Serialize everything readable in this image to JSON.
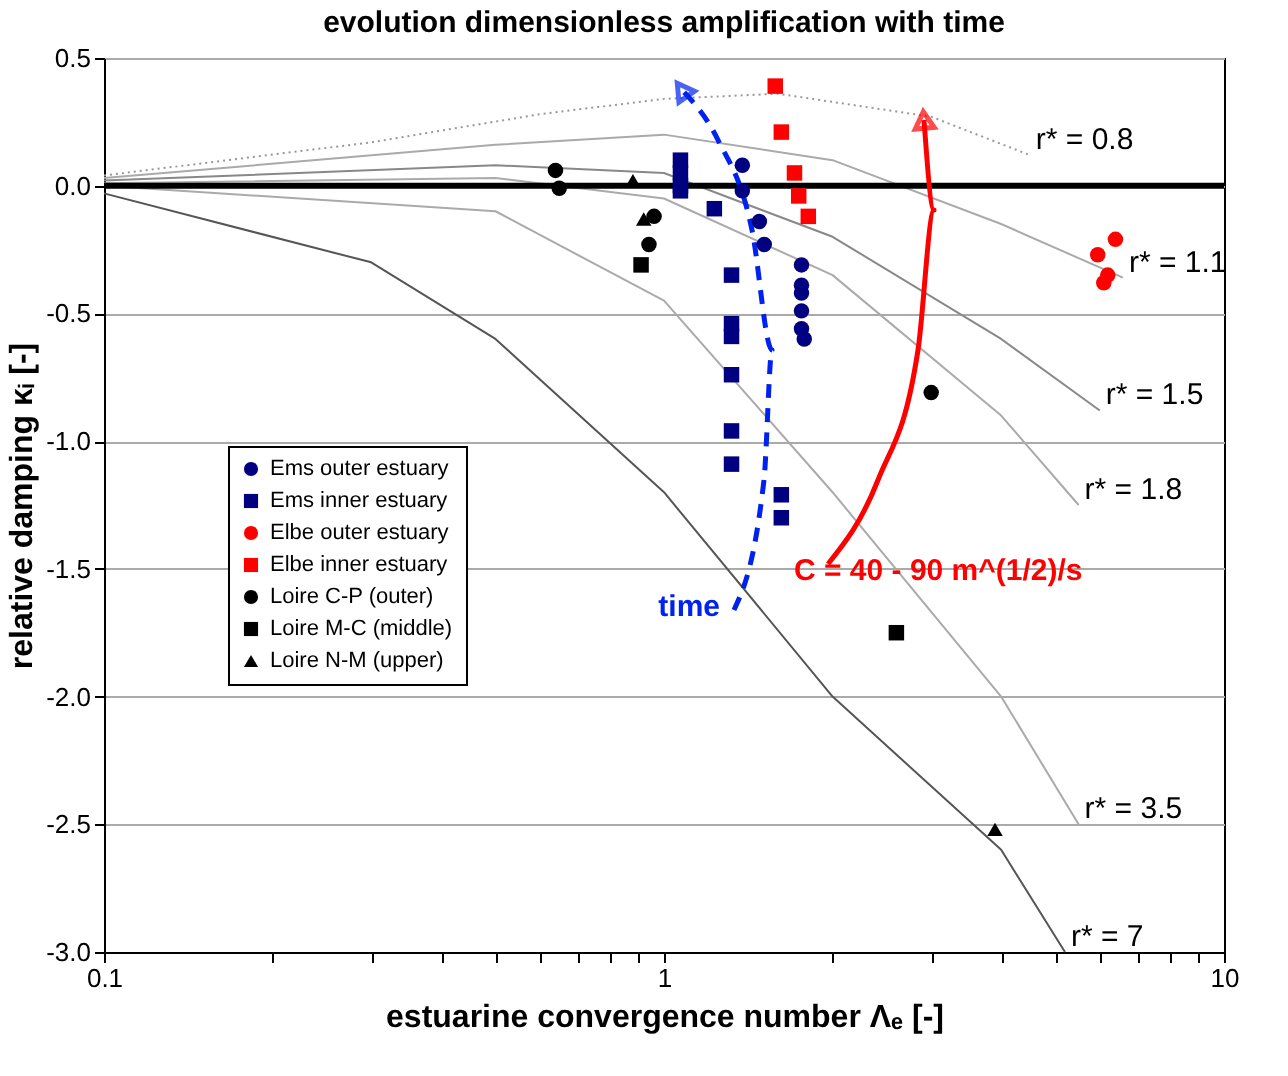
{
  "chart_data": {
    "type": "scatter",
    "title": "evolution dimensionless amplification with time",
    "xlabel": "estuarine convergence number Λₑ [-]",
    "ylabel": "relative damping κᵢ [-]",
    "log": "x",
    "grid": "y",
    "legend": "left",
    "xlim": [
      0.1,
      10
    ],
    "xticks": [
      0.1,
      {
        "value": 0.2,
        "label": null
      },
      {
        "value": 0.3,
        "label": null
      },
      {
        "value": 0.4,
        "label": null
      },
      {
        "value": 0.5,
        "label": null
      },
      {
        "value": 0.6,
        "label": null
      },
      {
        "value": 0.7,
        "label": null
      },
      {
        "value": 0.8,
        "label": null
      },
      {
        "value": 0.9,
        "label": null
      },
      1,
      {
        "value": 2,
        "label": null
      },
      {
        "value": 3,
        "label": null
      },
      {
        "value": 4,
        "label": null
      },
      {
        "value": 5,
        "label": null
      },
      {
        "value": 6,
        "label": null
      },
      {
        "value": 7,
        "label": null
      },
      {
        "value": 8,
        "label": null
      },
      {
        "value": 9,
        "label": null
      },
      10
    ],
    "ylim": [
      -3.0,
      0.5
    ],
    "yticks": [
      0.5,
      {
        "value": 0,
        "label": "0.0"
      },
      -0.5,
      {
        "value": -1,
        "label": "-1.0"
      },
      -1.5,
      {
        "value": -2,
        "label": "-2.0"
      },
      -2.5,
      {
        "value": -3,
        "label": "-3.0"
      }
    ],
    "ref_lines": [
      {
        "axis": "y",
        "value": 0,
        "color": "#000000"
      }
    ],
    "series": [
      {
        "name": "Ems outer estuary",
        "marker": "circle",
        "color": "#000080",
        "x": [
          1.38,
          1.38,
          1.48,
          1.51,
          1.76,
          1.76,
          1.76,
          1.76,
          1.76,
          1.78
        ],
        "values": [
          0.08,
          -0.02,
          -0.14,
          -0.23,
          -0.31,
          -0.39,
          -0.42,
          -0.49,
          -0.56,
          -0.6
        ]
      },
      {
        "name": "Ems inner estuary",
        "marker": "square",
        "color": "#000080",
        "x": [
          1.07,
          1.07,
          1.07,
          1.07,
          1.23,
          1.32,
          1.32,
          1.32,
          1.32,
          1.32,
          1.32,
          1.62,
          1.62
        ],
        "values": [
          0.1,
          0.05,
          0.0,
          -0.02,
          -0.09,
          -0.35,
          -0.54,
          -0.59,
          -0.74,
          -0.96,
          -1.09,
          -1.21,
          -1.3
        ]
      },
      {
        "name": "Elbe outer estuary",
        "marker": "circle",
        "color": "#ff0000",
        "x": [
          6.4,
          5.95,
          6.2,
          6.1
        ],
        "values": [
          -0.21,
          -0.27,
          -0.35,
          -0.38
        ]
      },
      {
        "name": "Elbe inner estuary",
        "marker": "square",
        "color": "#ff0000",
        "x": [
          1.58,
          1.62,
          1.71,
          1.74,
          1.81
        ],
        "values": [
          0.39,
          0.21,
          0.05,
          -0.04,
          -0.12
        ]
      },
      {
        "name": "Loire C-P (outer)",
        "marker": "circle",
        "color": "#000000",
        "x": [
          0.64,
          0.65,
          0.96,
          0.94,
          3.0
        ],
        "values": [
          0.06,
          -0.01,
          -0.12,
          -0.23,
          -0.81
        ]
      },
      {
        "name": "Loire M-C (middle)",
        "marker": "square",
        "color": "#000000",
        "x": [
          0.91,
          2.6
        ],
        "values": [
          -0.31,
          -1.75
        ]
      },
      {
        "name": "Loire N-M (upper)",
        "marker": "triangle",
        "color": "#000000",
        "x": [
          0.88,
          0.92,
          3.9
        ],
        "values": [
          0.02,
          -0.13,
          -2.52
        ]
      },
      {
        "name": "r* = 0.8",
        "type": "line",
        "line_style": "dotted",
        "color": "#999999",
        "x": [
          0.1,
          0.3,
          0.6,
          1,
          1.6,
          3,
          4.5
        ],
        "values": [
          0.04,
          0.17,
          0.28,
          0.34,
          0.36,
          0.27,
          0.12
        ]
      },
      {
        "name": "r* = 1.1",
        "type": "line",
        "line_style": "solid",
        "color": "#aaaaaa",
        "x": [
          0.1,
          0.5,
          1,
          2,
          4,
          6.6
        ],
        "values": [
          0.03,
          0.16,
          0.2,
          0.1,
          -0.15,
          -0.36
        ]
      },
      {
        "name": "r* = 1.5",
        "type": "line",
        "line_style": "solid",
        "color": "#888888",
        "x": [
          0.1,
          0.5,
          1,
          2,
          4,
          6
        ],
        "values": [
          0.02,
          0.08,
          0.05,
          -0.2,
          -0.6,
          -0.88
        ]
      },
      {
        "name": "r* = 1.8",
        "type": "line",
        "line_style": "solid",
        "color": "#aaaaaa",
        "x": [
          0.1,
          0.5,
          1,
          2,
          4,
          5.5
        ],
        "values": [
          0.01,
          0.03,
          -0.05,
          -0.35,
          -0.9,
          -1.25
        ]
      },
      {
        "name": "r* = 3.5",
        "type": "line",
        "line_style": "solid",
        "color": "#aaaaaa",
        "x": [
          0.1,
          0.5,
          1,
          2,
          4,
          5.5
        ],
        "values": [
          0.0,
          -0.1,
          -0.45,
          -1.2,
          -2.0,
          -2.5
        ]
      },
      {
        "name": "r* = 7",
        "type": "line",
        "line_style": "solid",
        "color": "#555555",
        "x": [
          0.1,
          0.3,
          0.5,
          1,
          2,
          4,
          5.2
        ],
        "values": [
          -0.03,
          -0.3,
          -0.6,
          -1.2,
          -2.0,
          -2.6,
          -3.0
        ]
      }
    ],
    "annotations": [
      "time",
      "C = 40 - 90 m^(1/2)/s"
    ]
  }
}
